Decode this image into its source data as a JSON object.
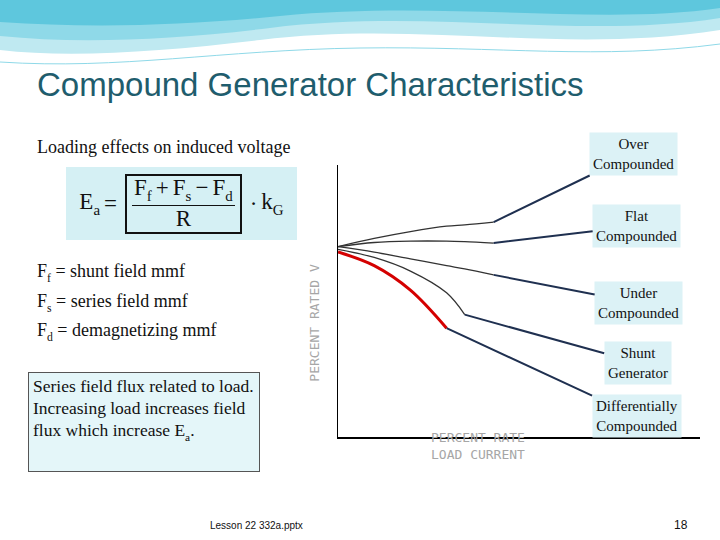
{
  "slide": {
    "title": "Compound Generator Characteristics",
    "subtitle": "Loading effects on induced voltage",
    "formula": {
      "lhs": {
        "base": "E",
        "sub": "a"
      },
      "eq": "=",
      "numerator": [
        {
          "base": "F",
          "sub": "f"
        },
        {
          "op": "+"
        },
        {
          "base": "F",
          "sub": "s"
        },
        {
          "op": "−"
        },
        {
          "base": "F",
          "sub": "d"
        }
      ],
      "denominator": "R",
      "times": "·",
      "factor": {
        "base": "k",
        "sub": "G"
      }
    },
    "definitions": [
      {
        "base": "F",
        "sub": "f",
        "text": "= shunt field mmf"
      },
      {
        "base": "F",
        "sub": "s",
        "text": "= series field mmf"
      },
      {
        "base": "F",
        "sub": "d",
        "text": "= demagnetizing mmf"
      }
    ],
    "note": {
      "text": "Series field flux related to load. Increasing load increases field flux which increase ",
      "base": "E",
      "sub": "a",
      "end": "."
    },
    "footer": "Lesson 22 332a.pptx",
    "page": "18"
  },
  "chart_data": {
    "type": "line",
    "x_label": "PERCENT RATE\nLOAD CURRENT",
    "y_label": "PERCENT RATED V",
    "x": [
      0,
      10,
      20,
      30,
      35,
      43
    ],
    "series": [
      {
        "name": "Over Compounded",
        "color": "#333333",
        "line_style": "solid",
        "values": [
          70,
          73,
          75.5,
          77.5,
          78,
          79
        ]
      },
      {
        "name": "Flat Compounded",
        "color": "#333333",
        "line_style": "solid",
        "values": [
          70,
          71.5,
          72,
          72,
          71.8,
          71.3
        ]
      },
      {
        "name": "Under Compounded",
        "color": "#333333",
        "line_style": "solid",
        "values": [
          70,
          68,
          65.5,
          63,
          61.8,
          59.6
        ]
      },
      {
        "name": "Shunt Generator",
        "color": "#333333",
        "line_style": "solid",
        "values": [
          69,
          66,
          61,
          53,
          45,
          null
        ]
      },
      {
        "name": "Differentially Compounded",
        "color": "#d40000",
        "line_style": "solid",
        "values": [
          68,
          63,
          54,
          40,
          null,
          null
        ]
      }
    ],
    "xlim": [
      0,
      100
    ],
    "ylim": [
      0,
      100
    ],
    "xticks": [],
    "yticks": [],
    "tick_labels": false
  }
}
